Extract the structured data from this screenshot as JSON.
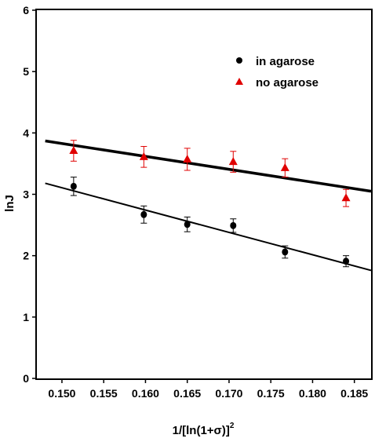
{
  "chart_data": {
    "type": "scatter",
    "xlabel_main": "1/[ln(1+σ)]",
    "xlabel_sup": "2",
    "ylabel": "lnJ",
    "xlim": [
      0.147,
      0.187
    ],
    "ylim": [
      0,
      6
    ],
    "x_ticks": [
      "0.150",
      "0.155",
      "0.160",
      "0.165",
      "0.170",
      "0.175",
      "0.180",
      "0.185"
    ],
    "y_ticks": [
      "0",
      "1",
      "2",
      "3",
      "4",
      "5",
      "6"
    ],
    "legend_position": "top-right",
    "series": [
      {
        "name": "in agarose",
        "marker": "circle",
        "color": "#000000",
        "points": [
          {
            "x": 0.1514,
            "y": 3.13,
            "err": 0.15
          },
          {
            "x": 0.1598,
            "y": 2.67,
            "err": 0.14
          },
          {
            "x": 0.165,
            "y": 2.51,
            "err": 0.12
          },
          {
            "x": 0.1705,
            "y": 2.49,
            "err": 0.11
          },
          {
            "x": 0.1767,
            "y": 2.06,
            "err": 0.1
          },
          {
            "x": 0.184,
            "y": 1.91,
            "err": 0.09
          }
        ],
        "fit": {
          "x1": 0.148,
          "y1": 3.18,
          "x2": 0.187,
          "y2": 1.76
        }
      },
      {
        "name": "no agarose",
        "marker": "triangle",
        "color": "#e00000",
        "points": [
          {
            "x": 0.1514,
            "y": 3.71,
            "err": 0.17
          },
          {
            "x": 0.1598,
            "y": 3.61,
            "err": 0.17
          },
          {
            "x": 0.165,
            "y": 3.57,
            "err": 0.18
          },
          {
            "x": 0.1705,
            "y": 3.53,
            "err": 0.17
          },
          {
            "x": 0.1767,
            "y": 3.43,
            "err": 0.15
          },
          {
            "x": 0.184,
            "y": 2.94,
            "err": 0.14
          }
        ],
        "fit": {
          "x1": 0.148,
          "y1": 3.87,
          "x2": 0.187,
          "y2": 3.05
        }
      }
    ]
  }
}
